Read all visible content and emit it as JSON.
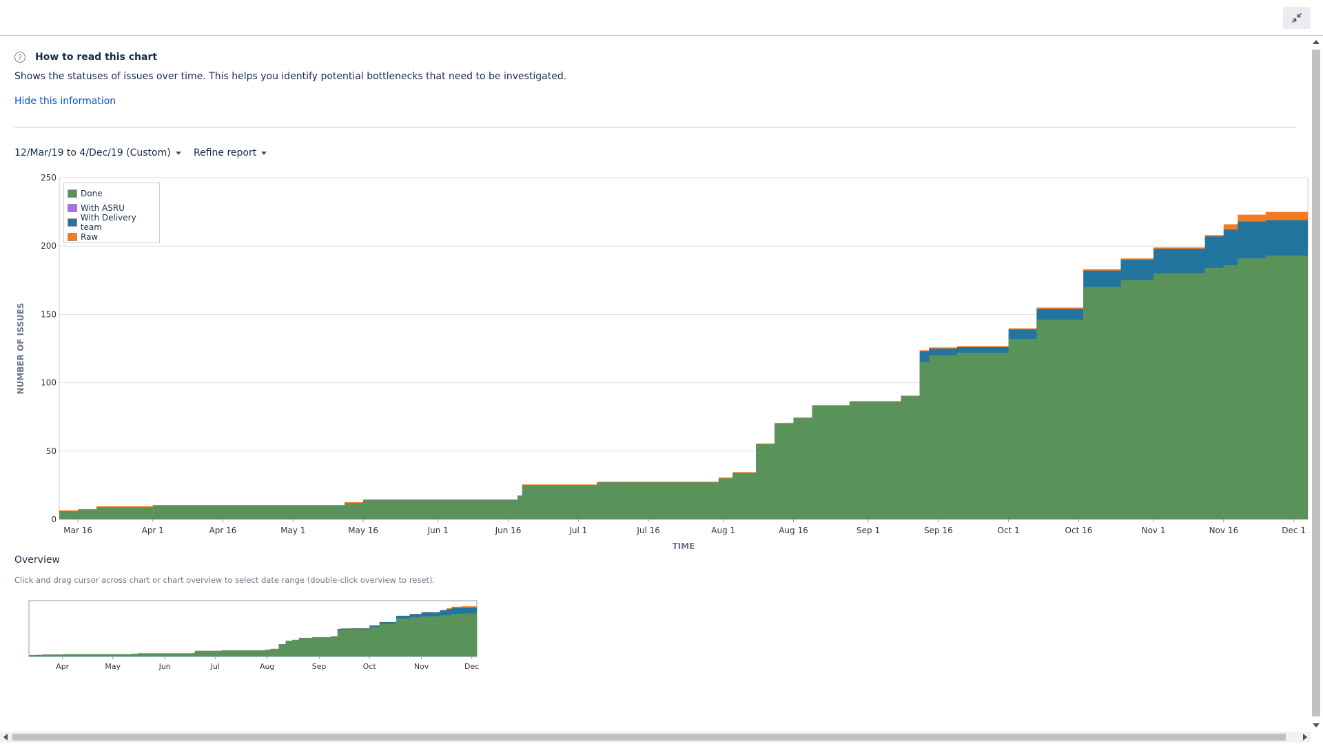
{
  "help": {
    "title": "How to read this chart",
    "description": "Shows the statuses of issues over time. This helps you identify potential bottlenecks that need to be investigated.",
    "hide_link": "Hide this information"
  },
  "controls": {
    "date_range": "12/Mar/19 to 4/Dec/19 (Custom)",
    "refine": "Refine report"
  },
  "overview": {
    "title": "Overview",
    "hint": "Click and drag cursor across chart or chart overview to select date range (double-click overview to reset).",
    "x_ticks": [
      "Apr",
      "May",
      "Jun",
      "Jul",
      "Aug",
      "Sep",
      "Oct",
      "Nov",
      "Dec"
    ]
  },
  "icons": {
    "collapse": "collapse-arrows-icon",
    "help": "question-circle-icon"
  },
  "chart_data": {
    "type": "area",
    "stacked": true,
    "xlabel": "TIME",
    "ylabel": "NUMBER OF ISSUES",
    "ylim": [
      0,
      250
    ],
    "y_ticks": [
      0,
      50,
      100,
      150,
      200,
      250
    ],
    "x_ticks": [
      "Mar 16",
      "Apr 1",
      "Apr 16",
      "May 1",
      "May 16",
      "Jun 1",
      "Jun 16",
      "Jul 1",
      "Jul 16",
      "Aug 1",
      "Aug 16",
      "Sep 1",
      "Sep 16",
      "Oct 1",
      "Oct 16",
      "Nov 1",
      "Nov 16",
      "Dec 1"
    ],
    "x_range": [
      "2019-03-12",
      "2019-12-04"
    ],
    "legend_position": "top-left",
    "grid": true,
    "dates": [
      "2019-03-12",
      "2019-03-16",
      "2019-03-20",
      "2019-04-01",
      "2019-05-12",
      "2019-05-16",
      "2019-06-18",
      "2019-06-19",
      "2019-07-05",
      "2019-07-31",
      "2019-08-03",
      "2019-08-08",
      "2019-08-12",
      "2019-08-16",
      "2019-08-20",
      "2019-08-28",
      "2019-09-08",
      "2019-09-12",
      "2019-09-14",
      "2019-09-20",
      "2019-10-01",
      "2019-10-07",
      "2019-10-17",
      "2019-10-25",
      "2019-11-01",
      "2019-11-12",
      "2019-11-16",
      "2019-11-19",
      "2019-11-25",
      "2019-12-02",
      "2019-12-04"
    ],
    "series": [
      {
        "name": "Done",
        "color": "#5a9359",
        "values": [
          6,
          7,
          9,
          10,
          12,
          14,
          17,
          25,
          27,
          30,
          34,
          55,
          70,
          74,
          83,
          86,
          90,
          115,
          120,
          122,
          132,
          146,
          170,
          175,
          180,
          184,
          186,
          191,
          193,
          193,
          194
        ]
      },
      {
        "name": "With ASRU",
        "color": "#a56cf0",
        "values": [
          0,
          0,
          0,
          0,
          0,
          0,
          0,
          0,
          0,
          0,
          0,
          0,
          0,
          0,
          0,
          0,
          0,
          0,
          0,
          0,
          0,
          0,
          0,
          0,
          0,
          0,
          0,
          0,
          0,
          0,
          8
        ]
      },
      {
        "name": "With Delivery team",
        "color": "#21759e",
        "values": [
          0,
          0,
          0,
          0,
          0,
          0,
          0,
          0,
          0,
          0,
          0,
          0,
          0,
          0,
          0,
          0,
          0,
          8,
          5,
          4,
          7,
          8,
          12,
          15,
          18,
          23,
          26,
          27,
          26,
          26,
          18
        ]
      },
      {
        "name": "Raw",
        "color": "#f47b20",
        "values": [
          0.6,
          0.6,
          0.6,
          0.6,
          0.6,
          0.6,
          0.6,
          0.6,
          0.6,
          0.6,
          0.6,
          0.6,
          0.6,
          0.6,
          0.6,
          0.6,
          0.6,
          0.8,
          0.8,
          0.8,
          0.8,
          1,
          1,
          1,
          1,
          1,
          4,
          5,
          6,
          6,
          6
        ]
      }
    ]
  }
}
